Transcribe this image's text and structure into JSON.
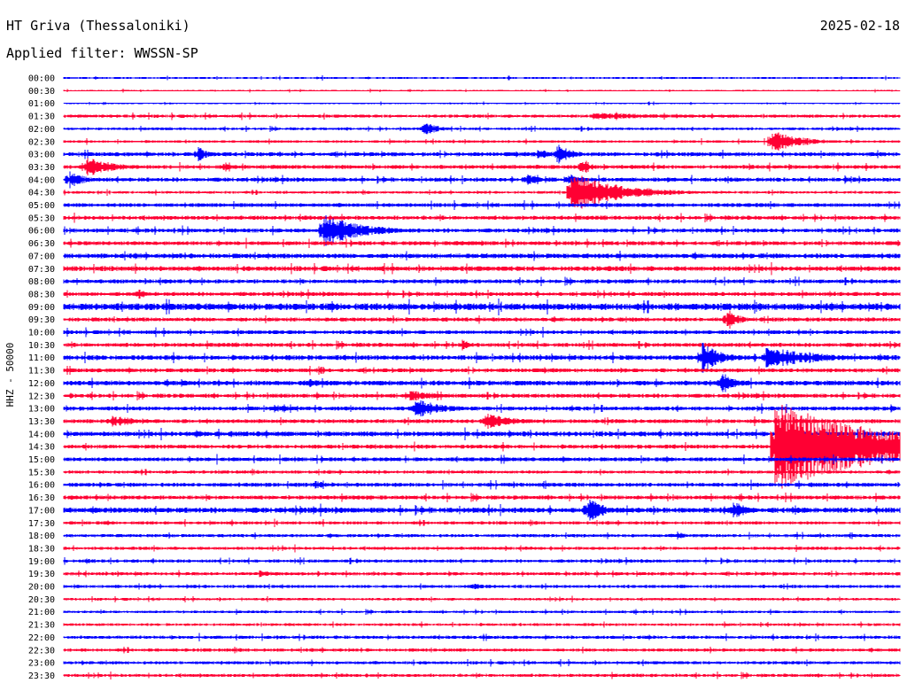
{
  "header": {
    "station": "HT Griva (Thessaloniki)",
    "date": "2025-02-18",
    "filter": "Applied filter: WWSSN-SP"
  },
  "chart_data": {
    "type": "line",
    "title": "HT Griva (Thessaloniki)",
    "ylabel": "HHZ - 50000",
    "colors": {
      "even": "#0000ff",
      "odd": "#ff0033",
      "label": "#000000"
    },
    "rows": [
      "00:00",
      "00:30",
      "01:00",
      "01:30",
      "02:00",
      "02:30",
      "03:00",
      "03:30",
      "04:00",
      "04:30",
      "05:00",
      "05:30",
      "06:00",
      "06:30",
      "07:00",
      "07:30",
      "08:00",
      "08:30",
      "09:00",
      "09:30",
      "10:00",
      "10:30",
      "11:00",
      "11:30",
      "12:00",
      "12:30",
      "13:00",
      "13:30",
      "14:00",
      "14:30",
      "15:00",
      "15:30",
      "16:00",
      "16:30",
      "17:00",
      "17:30",
      "18:00",
      "18:30",
      "19:00",
      "19:30",
      "20:00",
      "20:30",
      "21:00",
      "21:30",
      "22:00",
      "22:30",
      "23:00",
      "23:30"
    ],
    "row_minutes": 30,
    "noise": [
      0.8,
      0.6,
      0.6,
      1.2,
      1.0,
      1.0,
      1.5,
      1.5,
      1.5,
      1.0,
      1.5,
      1.5,
      1.5,
      1.5,
      1.8,
      1.8,
      1.5,
      1.5,
      2.5,
      1.5,
      1.5,
      1.5,
      1.8,
      1.5,
      1.8,
      1.5,
      1.5,
      1.5,
      1.8,
      1.5,
      1.5,
      1.2,
      1.5,
      1.5,
      2.0,
      1.2,
      1.2,
      1.2,
      1.2,
      1.2,
      1.2,
      1.0,
      1.0,
      1.0,
      1.2,
      1.2,
      1.2,
      1.2
    ],
    "events": [
      {
        "row": 3,
        "minute": 19.0,
        "amplitude": 4,
        "duration": 10
      },
      {
        "row": 4,
        "minute": 12.9,
        "amplitude": 9,
        "duration": 1.5
      },
      {
        "row": 5,
        "minute": 25.4,
        "amplitude": 14,
        "duration": 3
      },
      {
        "row": 6,
        "minute": 4.8,
        "amplitude": 9,
        "duration": 1.2
      },
      {
        "row": 6,
        "minute": 17.7,
        "amplitude": 13,
        "duration": 1.5
      },
      {
        "row": 6,
        "minute": 17.0,
        "amplitude": 6,
        "duration": 2
      },
      {
        "row": 7,
        "minute": 0.8,
        "amplitude": 12,
        "duration": 3
      },
      {
        "row": 7,
        "minute": 18.6,
        "amplitude": 12,
        "duration": 0.8
      },
      {
        "row": 7,
        "minute": 5.7,
        "amplitude": 5,
        "duration": 1.5
      },
      {
        "row": 8,
        "minute": 0.2,
        "amplitude": 12,
        "duration": 1.5
      },
      {
        "row": 8,
        "minute": 16.6,
        "amplitude": 9,
        "duration": 1.2
      },
      {
        "row": 8,
        "minute": 18.1,
        "amplitude": 8,
        "duration": 1.5
      },
      {
        "row": 9,
        "minute": 18.2,
        "amplitude": 24,
        "duration": 5
      },
      {
        "row": 12,
        "minute": 9.3,
        "amplitude": 20,
        "duration": 4
      },
      {
        "row": 13,
        "minute": 14.0,
        "amplitude": 4,
        "duration": 3
      },
      {
        "row": 16,
        "minute": 20.0,
        "amplitude": 3,
        "duration": 2
      },
      {
        "row": 17,
        "minute": 2.7,
        "amplitude": 7,
        "duration": 0.7
      },
      {
        "row": 19,
        "minute": 23.8,
        "amplitude": 14,
        "duration": 1.2
      },
      {
        "row": 21,
        "minute": 14.3,
        "amplitude": 7,
        "duration": 0.8
      },
      {
        "row": 22,
        "minute": 22.9,
        "amplitude": 18,
        "duration": 2
      },
      {
        "row": 22,
        "minute": 25.2,
        "amplitude": 14,
        "duration": 5
      },
      {
        "row": 23,
        "minute": 9.2,
        "amplitude": 6,
        "duration": 0.5
      },
      {
        "row": 24,
        "minute": 23.6,
        "amplitude": 14,
        "duration": 1.5
      },
      {
        "row": 24,
        "minute": 4.2,
        "amplitude": 6,
        "duration": 0.8
      },
      {
        "row": 24,
        "minute": 8.8,
        "amplitude": 5,
        "duration": 2
      },
      {
        "row": 25,
        "minute": 12.4,
        "amplitude": 7,
        "duration": 3
      },
      {
        "row": 26,
        "minute": 12.6,
        "amplitude": 12,
        "duration": 3
      },
      {
        "row": 26,
        "minute": 7.5,
        "amplitude": 5,
        "duration": 3
      },
      {
        "row": 27,
        "minute": 15.1,
        "amplitude": 10,
        "duration": 3
      },
      {
        "row": 27,
        "minute": 1.7,
        "amplitude": 7,
        "duration": 3
      },
      {
        "row": 28,
        "minute": 4.7,
        "amplitude": 5,
        "duration": 2
      },
      {
        "row": 29,
        "minute": 25.5,
        "amplitude": 52,
        "duration": 12
      },
      {
        "row": 32,
        "minute": 9.0,
        "amplitude": 5,
        "duration": 2
      },
      {
        "row": 34,
        "minute": 18.8,
        "amplitude": 16,
        "duration": 1.5
      },
      {
        "row": 34,
        "minute": 24.0,
        "amplitude": 12,
        "duration": 1.5
      },
      {
        "row": 34,
        "minute": 1.0,
        "amplitude": 5,
        "duration": 1.5
      },
      {
        "row": 36,
        "minute": 22.0,
        "amplitude": 5,
        "duration": 1
      },
      {
        "row": 38,
        "minute": 0.8,
        "amplitude": 5,
        "duration": 0.8
      },
      {
        "row": 39,
        "minute": 7.0,
        "amplitude": 4,
        "duration": 2
      },
      {
        "row": 40,
        "minute": 14.6,
        "amplitude": 4,
        "duration": 2
      }
    ]
  }
}
